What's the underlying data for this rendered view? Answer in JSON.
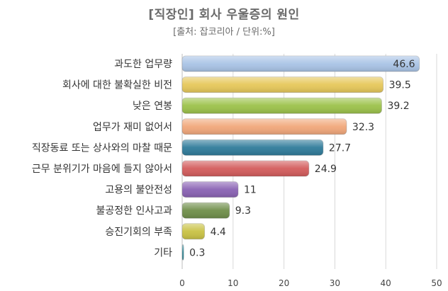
{
  "chart_data": {
    "type": "bar",
    "orientation": "horizontal",
    "title": "[직장인] 회사 우울증의 원인",
    "subtitle": "[출처: 잡코리아 / 단위:%]",
    "categories": [
      "과도한 업무량",
      "회사에 대한 불확실한 비전",
      "낮은 연봉",
      "업무가 재미 없어서",
      "직장동료 또는 상사와의 마찰 때문",
      "근무 분위기가 마음에 들지 않아서",
      "고용의 불안전성",
      "불공정한 인사고과",
      "승진기회의 부족",
      "기타"
    ],
    "values": [
      46.6,
      39.5,
      39.2,
      32.3,
      27.7,
      24.9,
      11,
      9.3,
      4.4,
      0.3
    ],
    "value_labels": [
      "46.6",
      "39.5",
      "39.2",
      "32.3",
      "27.7",
      "24.9",
      "11",
      "9.3",
      "4.4",
      "0.3"
    ],
    "bar_colors": [
      "#a9c4e6",
      "#e6c85a",
      "#9cc24a",
      "#f1a77a",
      "#2f7b9a",
      "#d35c5c",
      "#8a62b4",
      "#6f8e4a",
      "#c9c244",
      "#2f8a9a"
    ],
    "xlim": [
      0,
      50
    ],
    "xticks": [
      "0",
      "10",
      "20",
      "30",
      "40",
      "50"
    ],
    "grid": true
  }
}
